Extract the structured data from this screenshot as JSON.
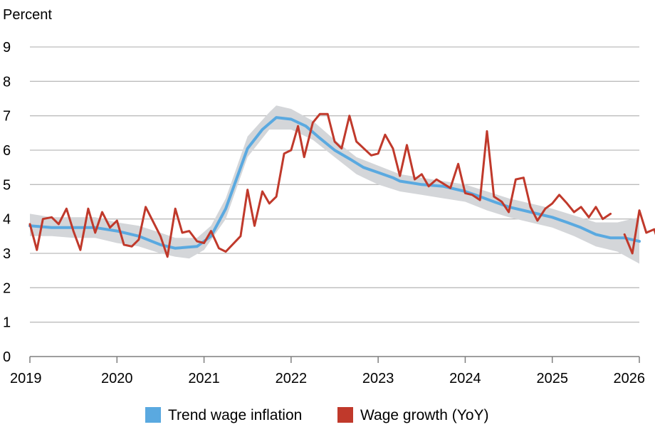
{
  "chart_data": {
    "type": "line",
    "ylabel": "Percent",
    "xlabel": "",
    "xlim": [
      2019,
      2026
    ],
    "ylim": [
      0,
      9
    ],
    "x_ticks": [
      "2019",
      "2020",
      "2021",
      "2022",
      "2023",
      "2024",
      "2025",
      "2026"
    ],
    "y_ticks": [
      "0",
      "1",
      "2",
      "3",
      "4",
      "5",
      "6",
      "7",
      "8",
      "9"
    ],
    "grid": "horizontal",
    "legend_position": "bottom",
    "band": {
      "upper": [
        [
          2019.0,
          4.15
        ],
        [
          2019.25,
          4.05
        ],
        [
          2019.5,
          4.05
        ],
        [
          2019.75,
          4.05
        ],
        [
          2020.0,
          3.9
        ],
        [
          2020.25,
          3.8
        ],
        [
          2020.5,
          3.6
        ],
        [
          2020.67,
          3.45
        ],
        [
          2020.92,
          3.45
        ],
        [
          2021.08,
          3.8
        ],
        [
          2021.25,
          4.6
        ],
        [
          2021.5,
          6.4
        ],
        [
          2021.75,
          7.1
        ],
        [
          2021.83,
          7.3
        ],
        [
          2022.0,
          7.2
        ],
        [
          2022.25,
          6.85
        ],
        [
          2022.5,
          6.3
        ],
        [
          2022.75,
          5.8
        ],
        [
          2023.0,
          5.55
        ],
        [
          2023.25,
          5.3
        ],
        [
          2023.5,
          5.2
        ],
        [
          2023.75,
          5.1
        ],
        [
          2024.0,
          5.0
        ],
        [
          2024.25,
          4.8
        ],
        [
          2024.5,
          4.6
        ],
        [
          2024.75,
          4.45
        ],
        [
          2025.0,
          4.3
        ],
        [
          2025.25,
          4.1
        ],
        [
          2025.5,
          3.9
        ],
        [
          2025.75,
          3.9
        ],
        [
          2026.0,
          4.05
        ]
      ],
      "lower": [
        [
          2019.0,
          3.5
        ],
        [
          2019.25,
          3.5
        ],
        [
          2019.5,
          3.45
        ],
        [
          2019.75,
          3.45
        ],
        [
          2020.0,
          3.3
        ],
        [
          2020.25,
          3.2
        ],
        [
          2020.5,
          3.0
        ],
        [
          2020.67,
          2.9
        ],
        [
          2020.83,
          2.85
        ],
        [
          2021.0,
          3.1
        ],
        [
          2021.25,
          4.0
        ],
        [
          2021.5,
          5.8
        ],
        [
          2021.75,
          6.6
        ],
        [
          2022.0,
          6.6
        ],
        [
          2022.25,
          6.3
        ],
        [
          2022.5,
          5.8
        ],
        [
          2022.75,
          5.3
        ],
        [
          2023.0,
          5.0
        ],
        [
          2023.25,
          4.8
        ],
        [
          2023.5,
          4.7
        ],
        [
          2023.75,
          4.6
        ],
        [
          2024.0,
          4.5
        ],
        [
          2024.25,
          4.25
        ],
        [
          2024.5,
          4.05
        ],
        [
          2024.75,
          3.9
        ],
        [
          2025.0,
          3.75
        ],
        [
          2025.25,
          3.5
        ],
        [
          2025.5,
          3.2
        ],
        [
          2025.75,
          3.05
        ],
        [
          2026.0,
          2.7
        ]
      ]
    },
    "series": [
      {
        "name": "Trend wage inflation",
        "color": "#5aa9e0",
        "points": [
          [
            2019.0,
            3.8
          ],
          [
            2019.25,
            3.75
          ],
          [
            2019.5,
            3.75
          ],
          [
            2019.75,
            3.75
          ],
          [
            2020.0,
            3.65
          ],
          [
            2020.25,
            3.5
          ],
          [
            2020.5,
            3.25
          ],
          [
            2020.67,
            3.15
          ],
          [
            2020.92,
            3.2
          ],
          [
            2021.08,
            3.5
          ],
          [
            2021.25,
            4.3
          ],
          [
            2021.5,
            6.05
          ],
          [
            2021.67,
            6.6
          ],
          [
            2021.83,
            6.95
          ],
          [
            2022.0,
            6.9
          ],
          [
            2022.17,
            6.7
          ],
          [
            2022.33,
            6.35
          ],
          [
            2022.5,
            6.0
          ],
          [
            2022.67,
            5.75
          ],
          [
            2022.83,
            5.5
          ],
          [
            2023.0,
            5.35
          ],
          [
            2023.17,
            5.2
          ],
          [
            2023.25,
            5.1
          ],
          [
            2023.5,
            5.0
          ],
          [
            2023.75,
            4.95
          ],
          [
            2024.0,
            4.8
          ],
          [
            2024.17,
            4.65
          ],
          [
            2024.33,
            4.5
          ],
          [
            2024.5,
            4.35
          ],
          [
            2024.75,
            4.2
          ],
          [
            2025.0,
            4.05
          ],
          [
            2025.17,
            3.9
          ],
          [
            2025.33,
            3.75
          ],
          [
            2025.5,
            3.55
          ],
          [
            2025.67,
            3.45
          ],
          [
            2025.83,
            3.45
          ],
          [
            2026.0,
            3.35
          ]
        ]
      },
      {
        "name": "Wage growth (YoY)",
        "color": "#c0392b",
        "segments": [
          [
            [
              2019.0,
              3.85
            ],
            [
              2019.08,
              3.1
            ],
            [
              2019.15,
              4.0
            ],
            [
              2019.25,
              4.05
            ],
            [
              2019.33,
              3.85
            ],
            [
              2019.42,
              4.3
            ],
            [
              2019.5,
              3.65
            ],
            [
              2019.58,
              3.1
            ],
            [
              2019.67,
              4.3
            ],
            [
              2019.75,
              3.6
            ],
            [
              2019.83,
              4.2
            ],
            [
              2019.92,
              3.75
            ],
            [
              2020.0,
              3.95
            ],
            [
              2020.08,
              3.25
            ],
            [
              2020.17,
              3.2
            ],
            [
              2020.25,
              3.4
            ],
            [
              2020.33,
              4.35
            ],
            [
              2020.5,
              3.5
            ],
            [
              2020.58,
              2.9
            ],
            [
              2020.67,
              4.3
            ],
            [
              2020.75,
              3.6
            ],
            [
              2020.83,
              3.65
            ],
            [
              2020.92,
              3.35
            ],
            [
              2021.0,
              3.3
            ],
            [
              2021.08,
              3.65
            ],
            [
              2021.17,
              3.15
            ],
            [
              2021.25,
              3.05
            ],
            [
              2021.42,
              3.5
            ],
            [
              2021.5,
              4.85
            ],
            [
              2021.58,
              3.8
            ],
            [
              2021.67,
              4.8
            ],
            [
              2021.75,
              4.45
            ],
            [
              2021.83,
              4.65
            ],
            [
              2021.92,
              5.9
            ],
            [
              2022.0,
              6.0
            ],
            [
              2022.08,
              6.7
            ],
            [
              2022.15,
              5.8
            ],
            [
              2022.25,
              6.8
            ],
            [
              2022.33,
              7.05
            ],
            [
              2022.42,
              7.05
            ],
            [
              2022.5,
              6.25
            ],
            [
              2022.58,
              6.05
            ],
            [
              2022.67,
              7.0
            ],
            [
              2022.75,
              6.25
            ],
            [
              2022.92,
              5.85
            ],
            [
              2023.0,
              5.9
            ],
            [
              2023.08,
              6.45
            ],
            [
              2023.17,
              6.05
            ],
            [
              2023.25,
              5.25
            ],
            [
              2023.33,
              6.15
            ],
            [
              2023.42,
              5.15
            ],
            [
              2023.5,
              5.3
            ],
            [
              2023.58,
              4.95
            ],
            [
              2023.67,
              5.15
            ],
            [
              2023.83,
              4.9
            ],
            [
              2023.92,
              5.6
            ],
            [
              2024.0,
              4.75
            ],
            [
              2024.08,
              4.7
            ],
            [
              2024.17,
              4.55
            ],
            [
              2024.25,
              6.55
            ],
            [
              2024.33,
              4.65
            ],
            [
              2024.42,
              4.5
            ],
            [
              2024.5,
              4.2
            ],
            [
              2024.58,
              5.15
            ],
            [
              2024.67,
              5.2
            ],
            [
              2024.75,
              4.35
            ],
            [
              2024.83,
              3.95
            ],
            [
              2024.92,
              4.3
            ],
            [
              2025.0,
              4.45
            ],
            [
              2025.08,
              4.7
            ],
            [
              2025.17,
              4.45
            ],
            [
              2025.25,
              4.2
            ],
            [
              2025.33,
              4.35
            ],
            [
              2025.42,
              4.05
            ],
            [
              2025.5,
              4.35
            ],
            [
              2025.58,
              4.0
            ],
            [
              2025.67,
              4.15
            ]
          ],
          [
            [
              2025.83,
              3.55
            ],
            [
              2025.92,
              3.0
            ],
            [
              2026.0,
              4.25
            ],
            [
              2026.08,
              3.6
            ],
            [
              2026.17,
              3.7
            ],
            [
              2026.25,
              3.1
            ]
          ]
        ]
      }
    ]
  }
}
